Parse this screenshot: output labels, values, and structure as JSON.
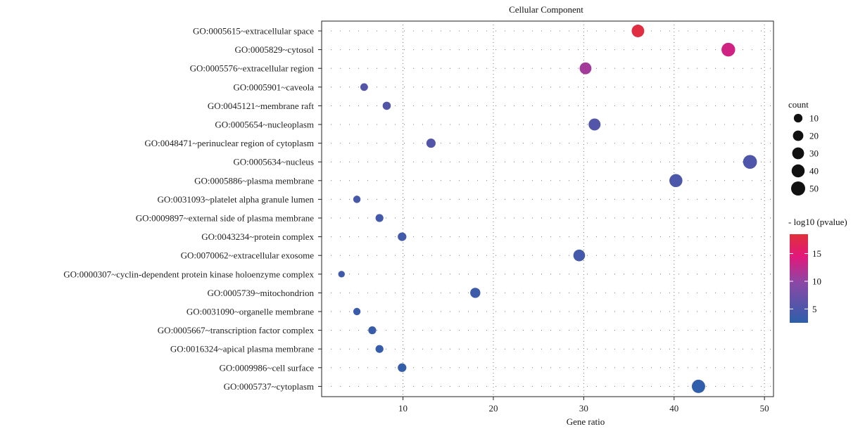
{
  "chart_data": {
    "type": "scatter",
    "title": "Cellular Component",
    "xlabel": "Gene ratio",
    "ylabel": "",
    "xlim": [
      1,
      51
    ],
    "xticks": [
      10,
      20,
      30,
      40,
      50
    ],
    "grid": true,
    "categories": [
      "GO:0005615~extracellular space",
      "GO:0005829~cytosol",
      "GO:0005576~extracellular region",
      "GO:0005901~caveola",
      "GO:0045121~membrane raft",
      "GO:0005654~nucleoplasm",
      "GO:0048471~perinuclear region of cytoplasm",
      "GO:0005634~nucleus",
      "GO:0005886~plasma membrane",
      "GO:0031093~platelet alpha granule lumen",
      "GO:0009897~external side of plasma membrane",
      "GO:0043234~protein complex",
      "GO:0070062~extracellular exosome",
      "GO:0000307~cyclin-dependent protein kinase holoenzyme complex",
      "GO:0005739~mitochondrion",
      "GO:0031090~organelle membrane",
      "GO:0005667~transcription factor complex",
      "GO:0016324~apical plasma membrane",
      "GO:0009986~cell surface",
      "GO:0005737~cytoplasm"
    ],
    "points": [
      {
        "x": 36,
        "size": 36,
        "neglog10p": 18
      },
      {
        "x": 46,
        "size": 46,
        "neglog10p": 13.5
      },
      {
        "x": 30.2,
        "size": 30,
        "neglog10p": 11
      },
      {
        "x": 5.7,
        "size": 6,
        "neglog10p": 5.5
      },
      {
        "x": 8.2,
        "size": 8,
        "neglog10p": 5.5
      },
      {
        "x": 31.2,
        "size": 31,
        "neglog10p": 5.5
      },
      {
        "x": 13.1,
        "size": 13,
        "neglog10p": 5.5
      },
      {
        "x": 48.4,
        "size": 48,
        "neglog10p": 5.2
      },
      {
        "x": 40.2,
        "size": 40,
        "neglog10p": 5
      },
      {
        "x": 4.9,
        "size": 5,
        "neglog10p": 4.5
      },
      {
        "x": 7.4,
        "size": 7,
        "neglog10p": 4.3
      },
      {
        "x": 9.9,
        "size": 10,
        "neglog10p": 4.2
      },
      {
        "x": 29.5,
        "size": 29,
        "neglog10p": 4.2
      },
      {
        "x": 3.2,
        "size": 3,
        "neglog10p": 4
      },
      {
        "x": 18.0,
        "size": 18,
        "neglog10p": 3.8
      },
      {
        "x": 4.9,
        "size": 5,
        "neglog10p": 3.6
      },
      {
        "x": 6.6,
        "size": 7,
        "neglog10p": 3.4
      },
      {
        "x": 7.4,
        "size": 7,
        "neglog10p": 3.2
      },
      {
        "x": 9.9,
        "size": 10,
        "neglog10p": 3.1
      },
      {
        "x": 42.7,
        "size": 43,
        "neglog10p": 2.9
      }
    ],
    "size_legend": {
      "title": "count",
      "values": [
        10,
        20,
        30,
        40,
        50
      ],
      "labels": [
        "10",
        "20",
        "30",
        "40",
        "50"
      ]
    },
    "color_legend": {
      "title": "- log10 (pvalue)",
      "range": [
        2.5,
        18.5
      ],
      "ticks": [
        5,
        10,
        15
      ],
      "labels": [
        "5",
        "10",
        "15"
      ],
      "colors": {
        "low": "#2c5faa",
        "mid": "#8a48a6",
        "high": "#e0303a"
      }
    }
  }
}
